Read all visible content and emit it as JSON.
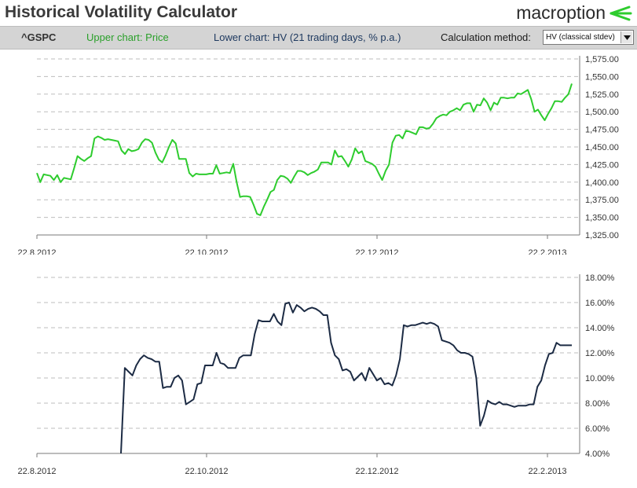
{
  "header": {
    "title": "Historical Volatility Calculator",
    "brand": "macroption"
  },
  "toolbar": {
    "ticker": "^GSPC",
    "upper_chart_label": "Upper chart: Price",
    "lower_chart_label": "Lower chart: HV (21 trading days, % p.a.)",
    "calc_method_label": "Calculation method:",
    "calc_method_value": "HV (classical stdev)"
  },
  "colors": {
    "price_line": "#2ecc2e",
    "hv_line": "#1c2b44",
    "toolbar_bg": "#d4d4d4",
    "brand_accent": "#2ecc2e"
  },
  "chart_data": [
    {
      "type": "line",
      "title": "",
      "series": [
        {
          "values": [
            1413,
            1400,
            1411,
            1410,
            1409,
            1403,
            1410,
            1400,
            1406,
            1405,
            1404,
            1420,
            1437,
            1433,
            1430,
            1434,
            1437,
            1462,
            1465,
            1463,
            1460,
            1461,
            1460,
            1459,
            1458,
            1445,
            1440,
            1447,
            1444,
            1445,
            1447,
            1456,
            1461,
            1460,
            1456,
            1442,
            1432,
            1428,
            1438,
            1450,
            1460,
            1455,
            1433,
            1433,
            1433,
            1413,
            1408,
            1412,
            1411,
            1411,
            1411,
            1412,
            1412,
            1424,
            1412,
            1413,
            1414,
            1413,
            1426,
            1400,
            1379,
            1380,
            1380,
            1379,
            1368,
            1355,
            1353,
            1365,
            1375,
            1386,
            1389,
            1403,
            1409,
            1408,
            1405,
            1399,
            1408,
            1416,
            1416,
            1414,
            1410,
            1413,
            1415,
            1418,
            1428,
            1428,
            1428,
            1425,
            1445,
            1436,
            1437,
            1430,
            1422,
            1432,
            1448,
            1441,
            1444,
            1430,
            1428,
            1426,
            1422,
            1412,
            1403,
            1416,
            1425,
            1456,
            1466,
            1467,
            1462,
            1473,
            1472,
            1470,
            1468,
            1478,
            1478,
            1476,
            1477,
            1483,
            1491,
            1494,
            1496,
            1495,
            1500,
            1502,
            1505,
            1502,
            1510,
            1512,
            1512,
            1500,
            1510,
            1509,
            1519,
            1513,
            1502,
            1513,
            1510,
            1520,
            1520,
            1519,
            1520,
            1520,
            1526,
            1525,
            1528,
            1531,
            1518,
            1500,
            1503,
            1495,
            1488,
            1497,
            1505,
            1515,
            1515,
            1514,
            1520,
            1525,
            1540
          ]
        }
      ],
      "x_tick_labels": [
        "22.8.2012",
        "22.10.2012",
        "22.12.2012",
        "22.2.2013"
      ],
      "y_tick_labels": [
        "1,325.00",
        "1,350.00",
        "1,375.00",
        "1,400.00",
        "1,425.00",
        "1,450.00",
        "1,475.00",
        "1,500.00",
        "1,525.00",
        "1,550.00",
        "1,575.00"
      ],
      "ylim": [
        1325,
        1575
      ],
      "grid": true,
      "y_axis_side": "right"
    },
    {
      "type": "line",
      "title": "",
      "series": [
        {
          "values": [
            null,
            null,
            null,
            null,
            null,
            null,
            null,
            null,
            null,
            null,
            null,
            null,
            null,
            null,
            null,
            null,
            null,
            null,
            null,
            null,
            null,
            null,
            3.5,
            10.8,
            10.5,
            10.2,
            11.0,
            11.5,
            11.8,
            11.6,
            11.5,
            11.3,
            11.3,
            9.2,
            9.3,
            9.3,
            10.0,
            10.2,
            9.8,
            7.9,
            8.1,
            8.3,
            9.5,
            9.6,
            11.0,
            11.0,
            11.0,
            12.0,
            11.2,
            11.1,
            10.8,
            10.8,
            10.8,
            11.6,
            11.8,
            11.8,
            11.8,
            13.5,
            14.6,
            14.5,
            14.5,
            14.5,
            15.1,
            14.5,
            14.2,
            15.9,
            16.0,
            15.2,
            15.8,
            15.6,
            15.3,
            15.5,
            15.6,
            15.5,
            15.3,
            15.0,
            15.0,
            12.8,
            11.8,
            11.5,
            10.6,
            10.7,
            10.5,
            9.8,
            10.1,
            10.4,
            9.8,
            10.8,
            10.3,
            9.8,
            10.0,
            9.5,
            9.6,
            9.4,
            10.2,
            11.5,
            14.2,
            14.1,
            14.2,
            14.2,
            14.3,
            14.4,
            14.3,
            14.4,
            14.3,
            14.1,
            13.0,
            12.9,
            12.8,
            12.6,
            12.2,
            12.0,
            12.0,
            11.9,
            11.7,
            10.0,
            6.2,
            7.0,
            8.2,
            8.0,
            7.9,
            8.1,
            7.9,
            7.9,
            7.8,
            7.7,
            7.8,
            7.8,
            7.8,
            7.9,
            7.9,
            9.3,
            9.8,
            11.0,
            11.9,
            12.0,
            12.8,
            12.6,
            12.6,
            12.6,
            12.6
          ]
        }
      ],
      "x_tick_labels": [
        "22.8.2012",
        "22.10.2012",
        "22.12.2012",
        "22.2.2013"
      ],
      "y_tick_labels": [
        "4.00%",
        "6.00%",
        "8.00%",
        "10.00%",
        "12.00%",
        "14.00%",
        "16.00%",
        "18.00%"
      ],
      "ylim": [
        4,
        18
      ],
      "grid": true,
      "y_axis_side": "right"
    }
  ]
}
